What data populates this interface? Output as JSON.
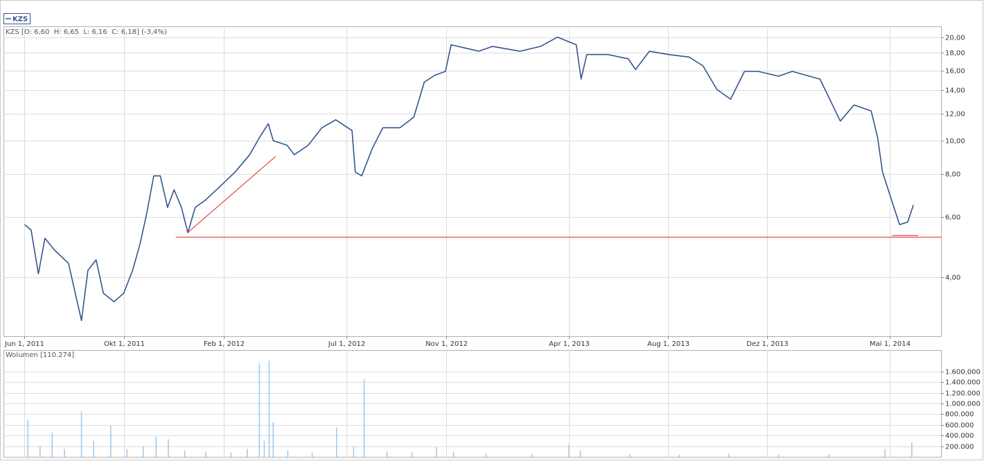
{
  "chart_data": [
    {
      "type": "line",
      "legend": "KZS",
      "info": "KZS [O: 6,60  H: 6,65  L: 6,16  C: 6,18] (-3,4%)",
      "log_scale": true,
      "grid": true,
      "xlim": [
        "2011-05-06",
        "2014-07-03"
      ],
      "xticks": [
        {
          "value": "2011-06-01",
          "label": "Jun 1, 2011"
        },
        {
          "value": "2011-10-01",
          "label": "Okt 1, 2011"
        },
        {
          "value": "2012-02-01",
          "label": "Feb 1, 2012"
        },
        {
          "value": "2012-07-01",
          "label": "Jul 1, 2012"
        },
        {
          "value": "2012-11-01",
          "label": "Nov 1, 2012"
        },
        {
          "value": "2013-04-01",
          "label": "Apr 1, 2013"
        },
        {
          "value": "2013-08-01",
          "label": "Aug 1, 2013"
        },
        {
          "value": "2013-12-01",
          "label": "Dez 1, 2013"
        },
        {
          "value": "2014-05-01",
          "label": "Mai 1, 2014"
        }
      ],
      "ylim": [
        2.7,
        21.5
      ],
      "yticks": [
        {
          "value": 4,
          "label": "4,00"
        },
        {
          "value": 6,
          "label": "6,00"
        },
        {
          "value": 8,
          "label": "8,00"
        },
        {
          "value": 10,
          "label": "10,00"
        },
        {
          "value": 12,
          "label": "12,00"
        },
        {
          "value": 14,
          "label": "14,00"
        },
        {
          "value": 16,
          "label": "16,00"
        },
        {
          "value": 18,
          "label": "18,00"
        },
        {
          "value": 20,
          "label": "20,00"
        }
      ],
      "x": [
        "2011-06-01",
        "2011-06-09",
        "2011-06-18",
        "2011-06-26",
        "2011-07-08",
        "2011-07-25",
        "2011-08-10",
        "2011-08-18",
        "2011-08-28",
        "2011-09-06",
        "2011-09-19",
        "2011-10-01",
        "2011-10-12",
        "2011-10-21",
        "2011-10-29",
        "2011-11-07",
        "2011-11-15",
        "2011-11-24",
        "2011-12-02",
        "2011-12-11",
        "2011-12-19",
        "2011-12-28",
        "2012-01-09",
        "2012-01-26",
        "2012-02-15",
        "2012-03-04",
        "2012-03-16",
        "2012-03-27",
        "2012-04-02",
        "2012-04-19",
        "2012-04-28",
        "2012-05-15",
        "2012-06-01",
        "2012-06-18",
        "2012-07-08",
        "2012-07-12",
        "2012-07-20",
        "2012-08-02",
        "2012-08-15",
        "2012-09-05",
        "2012-09-22",
        "2012-10-05",
        "2012-10-18",
        "2012-10-31",
        "2012-11-07",
        "2012-11-24",
        "2012-12-11",
        "2012-12-28",
        "2013-01-14",
        "2013-01-31",
        "2013-02-25",
        "2013-03-18",
        "2013-04-10",
        "2013-04-16",
        "2013-04-23",
        "2013-05-19",
        "2013-06-13",
        "2013-06-22",
        "2013-07-09",
        "2013-08-02",
        "2013-08-27",
        "2013-09-13",
        "2013-09-30",
        "2013-10-17",
        "2013-11-03",
        "2013-11-20",
        "2013-12-15",
        "2014-01-01",
        "2014-02-04",
        "2014-02-16",
        "2014-03-01",
        "2014-03-18",
        "2014-04-08",
        "2014-04-16",
        "2014-04-22",
        "2014-05-06",
        "2014-05-13",
        "2014-05-23",
        "2014-05-30"
      ],
      "series": [
        {
          "name": "KZS",
          "color": "#34548f",
          "values": [
            5.7,
            5.5,
            4.1,
            5.2,
            4.8,
            4.4,
            3.0,
            4.2,
            4.5,
            3.6,
            3.4,
            3.6,
            4.2,
            5.0,
            6.1,
            7.9,
            7.9,
            6.4,
            7.2,
            6.4,
            5.4,
            6.4,
            6.7,
            7.3,
            8.1,
            9.1,
            10.2,
            11.2,
            10.0,
            9.7,
            9.1,
            9.7,
            10.9,
            11.5,
            10.7,
            8.1,
            7.9,
            9.5,
            10.9,
            10.9,
            11.7,
            14.8,
            15.5,
            15.9,
            19.0,
            18.6,
            18.2,
            18.8,
            18.5,
            18.2,
            18.8,
            20.0,
            19.0,
            15.1,
            17.8,
            17.8,
            17.3,
            16.1,
            18.2,
            17.8,
            17.5,
            16.5,
            14.1,
            13.2,
            15.9,
            15.9,
            15.4,
            15.9,
            15.1,
            13.2,
            11.4,
            12.7,
            12.2,
            10.2,
            8.1,
            6.4,
            5.7,
            5.8,
            6.5
          ]
        }
      ],
      "trend_lines": [
        {
          "color": "#e02020",
          "x": [
            "2011-12-19",
            "2012-04-05"
          ],
          "values": [
            5.41,
            9.0
          ]
        },
        {
          "color": "#e02020",
          "x": [
            "2011-12-04",
            "2014-07-03"
          ],
          "values": [
            5.24,
            5.24
          ]
        },
        {
          "color": "#e02020",
          "x": [
            "2014-05-04",
            "2014-06-05"
          ],
          "values": [
            5.3,
            5.3
          ]
        }
      ]
    },
    {
      "type": "bar",
      "info": "Wolumen [110.274]",
      "grid": true,
      "xlim": [
        "2011-05-06",
        "2014-07-03"
      ],
      "ylim": [
        0,
        2000000
      ],
      "yticks": [
        {
          "value": 200000,
          "label": "200.000"
        },
        {
          "value": 400000,
          "label": "400.000"
        },
        {
          "value": 600000,
          "label": "600.000"
        },
        {
          "value": 800000,
          "label": "800.000"
        },
        {
          "value": 1000000,
          "label": "1.000.000"
        },
        {
          "value": 1200000,
          "label": "1.200.000"
        },
        {
          "value": 1400000,
          "label": "1.400.000"
        },
        {
          "value": 1600000,
          "label": "1.600.000"
        }
      ],
      "x": [
        "2011-06-05",
        "2011-06-20",
        "2011-07-05",
        "2011-07-20",
        "2011-08-10",
        "2011-08-25",
        "2011-09-15",
        "2011-10-05",
        "2011-10-25",
        "2011-11-10",
        "2011-11-25",
        "2011-12-15",
        "2012-01-10",
        "2012-02-10",
        "2012-03-01",
        "2012-03-16",
        "2012-03-22",
        "2012-03-28",
        "2012-04-02",
        "2012-04-20",
        "2012-05-20",
        "2012-06-19",
        "2012-07-10",
        "2012-07-23",
        "2012-08-20",
        "2012-09-20",
        "2012-10-20",
        "2012-11-10",
        "2012-12-20",
        "2013-02-15",
        "2013-04-01",
        "2013-04-15",
        "2013-06-15",
        "2013-08-15",
        "2013-10-15",
        "2013-12-15",
        "2014-02-15",
        "2014-04-25",
        "2014-05-28"
      ],
      "series": [
        {
          "name": "Wolumen",
          "color": "#9cc7f0",
          "values": [
            700000,
            200000,
            450000,
            150000,
            850000,
            300000,
            580000,
            150000,
            200000,
            380000,
            330000,
            120000,
            100000,
            80000,
            150000,
            1750000,
            300000,
            1800000,
            650000,
            120000,
            80000,
            550000,
            200000,
            1450000,
            100000,
            80000,
            180000,
            100000,
            60000,
            50000,
            230000,
            120000,
            50000,
            40000,
            60000,
            40000,
            50000,
            150000,
            270000
          ]
        }
      ]
    }
  ]
}
